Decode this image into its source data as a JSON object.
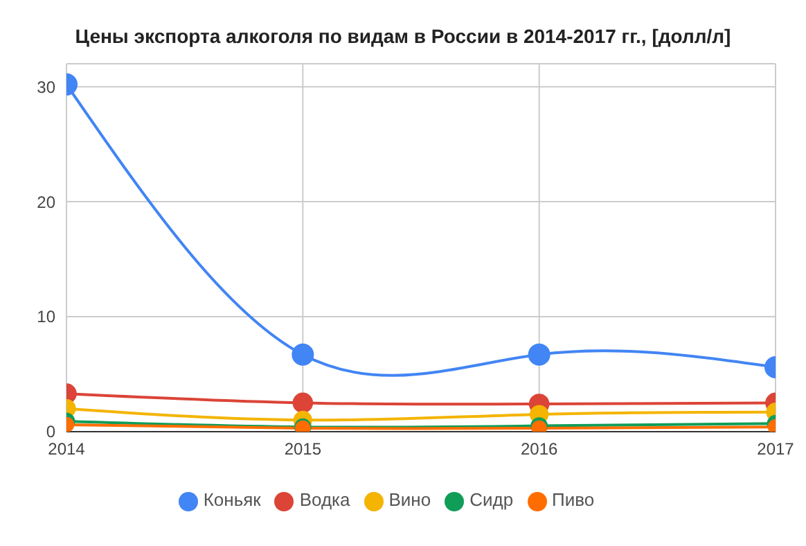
{
  "chart_data": {
    "type": "line",
    "title": "Цены экспорта алкоголя по видам в России в 2014-2017 гг., [долл/л]",
    "x": [
      2014,
      2015,
      2016,
      2017
    ],
    "xlim": [
      2014,
      2017
    ],
    "xticks": [
      2014,
      2015,
      2016,
      2017
    ],
    "ylim": [
      0,
      32
    ],
    "yticks": [
      0,
      10,
      20,
      30
    ],
    "grid": true,
    "legend": "bottom",
    "marker": "circle",
    "series": [
      {
        "name": "Коньяк",
        "color": "#4285f4",
        "values": [
          30.2,
          6.7,
          6.7,
          5.6
        ]
      },
      {
        "name": "Водка",
        "color": "#db4437",
        "values": [
          3.3,
          2.5,
          2.4,
          2.5
        ]
      },
      {
        "name": "Вино",
        "color": "#f4b400",
        "values": [
          2.0,
          1.0,
          1.5,
          1.7
        ]
      },
      {
        "name": "Сидр",
        "color": "#0f9d58",
        "values": [
          0.9,
          0.4,
          0.5,
          0.7
        ]
      },
      {
        "name": "Пиво",
        "color": "#ff6d00",
        "values": [
          0.6,
          0.3,
          0.3,
          0.4
        ]
      }
    ]
  }
}
